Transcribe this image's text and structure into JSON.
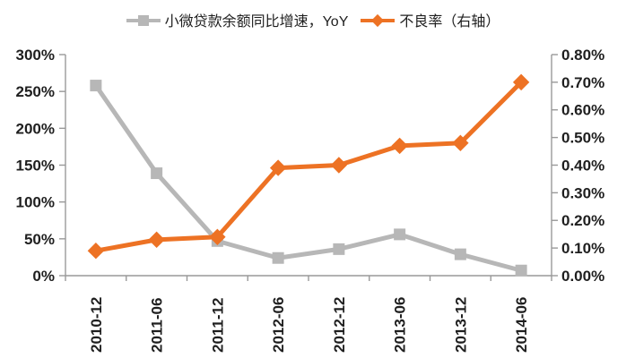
{
  "chart_data": {
    "type": "line",
    "title": "",
    "categories": [
      "2010-12",
      "2011-06",
      "2011-12",
      "2012-06",
      "2012-12",
      "2013-06",
      "2013-12",
      "2014-06"
    ],
    "series": [
      {
        "name": "小微贷款余额同比增速，YoY",
        "yAxis": "left",
        "marker": "square",
        "color": "#b7b7b7",
        "unit": "%",
        "values": [
          258,
          139,
          47,
          24,
          36,
          56,
          29,
          7
        ]
      },
      {
        "name": "不良率（右轴）",
        "yAxis": "right",
        "marker": "diamond",
        "color": "#ed7224",
        "unit": "%",
        "values": [
          0.09,
          0.13,
          0.14,
          0.39,
          0.4,
          0.47,
          0.48,
          0.7
        ]
      }
    ],
    "left_axis": {
      "min": 0,
      "max": 300,
      "step": 50,
      "unit": "%",
      "tick_labels": [
        "300%",
        "250%",
        "200%",
        "150%",
        "100%",
        "50%",
        "0%"
      ]
    },
    "right_axis": {
      "min": 0,
      "max": 0.8,
      "step": 0.1,
      "unit": "%",
      "tick_labels": [
        "0.80%",
        "0.70%",
        "0.60%",
        "0.50%",
        "0.40%",
        "0.30%",
        "0.20%",
        "0.10%",
        "0.00%"
      ]
    },
    "grid": false,
    "legend_position": "top",
    "style": {
      "axis_color": "#999999",
      "text_color": "#1f1f1f",
      "background": "#ffffff"
    }
  }
}
